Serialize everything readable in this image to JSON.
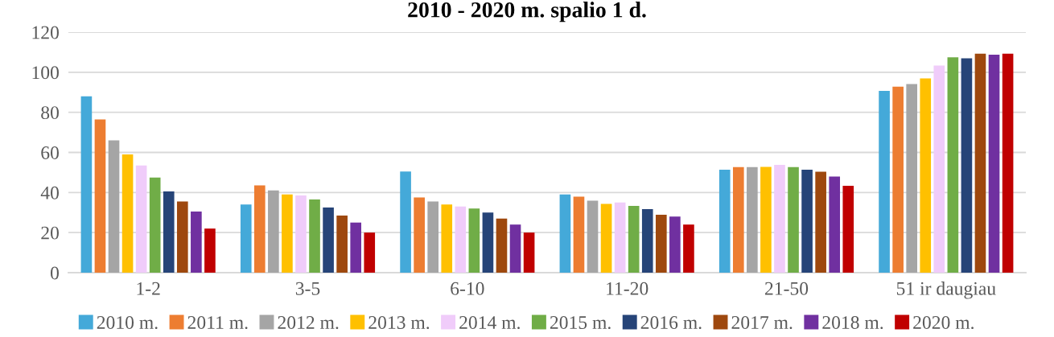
{
  "chart_data": {
    "type": "bar",
    "title": "2010 - 2020 m. spalio 1 d.",
    "categories": [
      "1-2",
      "3-5",
      "6-10",
      "11-20",
      "21-50",
      "51 ir daugiau"
    ],
    "ylim": [
      0,
      120
    ],
    "yticks": [
      0,
      20,
      40,
      60,
      80,
      100,
      120
    ],
    "grid": "y",
    "legend": "bottom",
    "series": [
      {
        "name": "2010 m.",
        "color": "#44a9d9",
        "values": [
          88,
          34,
          50.5,
          39,
          51.4,
          90.7
        ]
      },
      {
        "name": "2011 m.",
        "color": "#ed7d31",
        "values": [
          76.5,
          43.5,
          37.5,
          37.9,
          52.7,
          92.8
        ]
      },
      {
        "name": "2012 m.",
        "color": "#a5a5a5",
        "values": [
          66,
          41,
          35.5,
          35.9,
          52.7,
          94.1
        ]
      },
      {
        "name": "2013 m.",
        "color": "#ffc000",
        "values": [
          59,
          39,
          34,
          34.3,
          52.8,
          96.9
        ]
      },
      {
        "name": "2014 m.",
        "color": "#f0ccfa",
        "values": [
          53.5,
          38.5,
          33,
          35,
          53.8,
          103.3
        ]
      },
      {
        "name": "2015 m.",
        "color": "#70ad47",
        "values": [
          47.5,
          36.5,
          32,
          33.3,
          52.7,
          107.5
        ]
      },
      {
        "name": "2016 m.",
        "color": "#264478",
        "values": [
          40.5,
          32.5,
          30,
          31.7,
          51.4,
          107
        ]
      },
      {
        "name": "2017 m.",
        "color": "#9e480e",
        "values": [
          35.5,
          28.5,
          27,
          28.9,
          50.4,
          109.3
        ]
      },
      {
        "name": "2018 m.",
        "color": "#7030a0",
        "values": [
          30.5,
          25,
          24,
          28,
          48,
          108.8
        ]
      },
      {
        "name": "2020 m.",
        "color": "#c00000",
        "values": [
          22,
          20,
          20,
          24,
          43.3,
          109.3
        ]
      }
    ]
  }
}
